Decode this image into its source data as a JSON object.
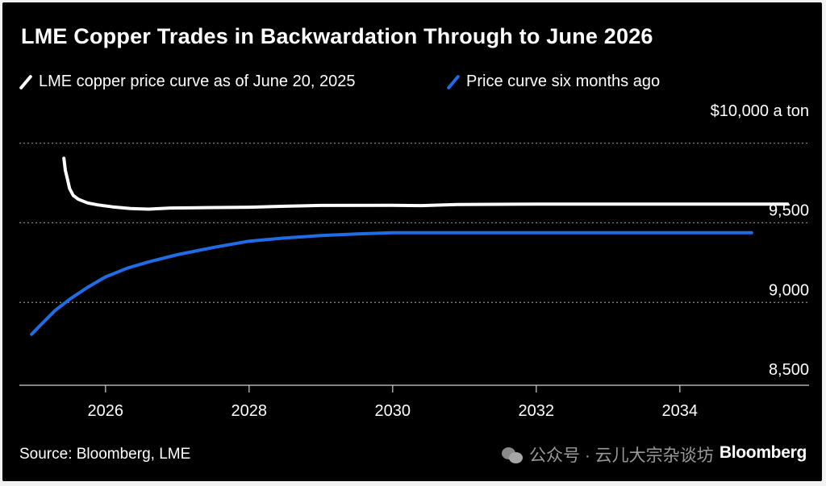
{
  "chart_data": {
    "type": "line",
    "title": "LME Copper Trades in Backwardation Through to June 2026",
    "unit_label": "$10,000 a ton",
    "xlim": [
      2024.8,
      2035.8
    ],
    "ylim": [
      8480,
      10140
    ],
    "x_ticks": [
      {
        "value": 2026,
        "label": "2026"
      },
      {
        "value": 2028,
        "label": "2028"
      },
      {
        "value": 2030,
        "label": "2030"
      },
      {
        "value": 2032,
        "label": "2032"
      },
      {
        "value": 2034,
        "label": "2034"
      }
    ],
    "y_ticks": [
      {
        "value": 9500,
        "label": "9,500"
      },
      {
        "value": 9000,
        "label": "9,000"
      },
      {
        "value": 8500,
        "label": "8,500"
      }
    ],
    "gridlines": [
      10000,
      9500,
      9000
    ],
    "legend_position": "top-left",
    "series": [
      {
        "name": "LME copper price curve as of June 20, 2025",
        "color": "#ffffff",
        "points": [
          [
            2025.42,
            9905
          ],
          [
            2025.44,
            9830
          ],
          [
            2025.47,
            9775
          ],
          [
            2025.5,
            9715
          ],
          [
            2025.55,
            9672
          ],
          [
            2025.62,
            9648
          ],
          [
            2025.75,
            9625
          ],
          [
            2025.9,
            9612
          ],
          [
            2026.1,
            9600
          ],
          [
            2026.35,
            9590
          ],
          [
            2026.6,
            9586
          ],
          [
            2026.9,
            9593
          ],
          [
            2027.3,
            9595
          ],
          [
            2028.0,
            9598
          ],
          [
            2028.5,
            9604
          ],
          [
            2029.0,
            9609
          ],
          [
            2030.0,
            9610
          ],
          [
            2030.4,
            9608
          ],
          [
            2030.9,
            9615
          ],
          [
            2032.0,
            9617
          ],
          [
            2034.0,
            9617
          ],
          [
            2035.5,
            9617
          ]
        ]
      },
      {
        "name": "Price curve six months ago",
        "color": "#1e6de6",
        "points": [
          [
            2024.97,
            8800
          ],
          [
            2025.1,
            8860
          ],
          [
            2025.3,
            8950
          ],
          [
            2025.5,
            9020
          ],
          [
            2025.75,
            9095
          ],
          [
            2026.0,
            9160
          ],
          [
            2026.3,
            9215
          ],
          [
            2026.6,
            9255
          ],
          [
            2027.0,
            9300
          ],
          [
            2027.5,
            9345
          ],
          [
            2028.0,
            9385
          ],
          [
            2028.5,
            9405
          ],
          [
            2029.0,
            9420
          ],
          [
            2029.5,
            9430
          ],
          [
            2030.0,
            9438
          ],
          [
            2031.0,
            9438
          ],
          [
            2033.0,
            9438
          ],
          [
            2035.0,
            9438
          ]
        ]
      }
    ],
    "source": "Source: Bloomberg, LME"
  },
  "watermark": "公众号 · 云儿大宗杂谈坊",
  "brand": "Bloomberg"
}
